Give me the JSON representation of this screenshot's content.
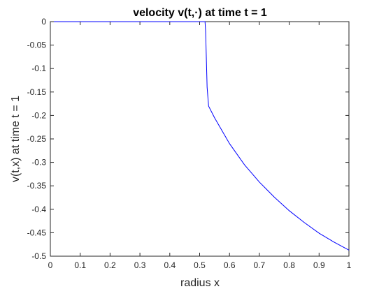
{
  "chart_data": {
    "type": "line",
    "title": "velocity v(t,·) at time  t = 1",
    "xlabel": "radius x",
    "ylabel": "v(t,x) at time t = 1",
    "xlim": [
      0,
      1
    ],
    "ylim": [
      -0.5,
      0
    ],
    "xticks": [
      0,
      0.1,
      0.2,
      0.3,
      0.4,
      0.5,
      0.6,
      0.7,
      0.8,
      0.9,
      1
    ],
    "xtick_labels": [
      "0",
      "0.1",
      "0.2",
      "0.3",
      "0.4",
      "0.5",
      "0.6",
      "0.7",
      "0.8",
      "0.9",
      "1"
    ],
    "yticks": [
      0,
      -0.05,
      -0.1,
      -0.15,
      -0.2,
      -0.25,
      -0.3,
      -0.35,
      -0.4,
      -0.45,
      -0.5
    ],
    "ytick_labels": [
      "0",
      "-0.05",
      "-0.1",
      "-0.15",
      "-0.2",
      "-0.25",
      "-0.3",
      "-0.35",
      "-0.4",
      "-0.45",
      "-0.5"
    ],
    "grid": false,
    "legend": "none",
    "line_color": "#0000ff",
    "series": [
      {
        "x": [
          0,
          0.1,
          0.2,
          0.3,
          0.4,
          0.5,
          0.518,
          0.52,
          0.525,
          0.53,
          0.55,
          0.6,
          0.65,
          0.7,
          0.75,
          0.8,
          0.85,
          0.9,
          0.95,
          1.0
        ],
        "y": [
          0,
          0,
          0,
          0,
          0,
          0,
          0,
          -0.02,
          -0.14,
          -0.18,
          -0.205,
          -0.26,
          -0.305,
          -0.342,
          -0.374,
          -0.403,
          -0.428,
          -0.451,
          -0.47,
          -0.487
        ]
      }
    ]
  }
}
